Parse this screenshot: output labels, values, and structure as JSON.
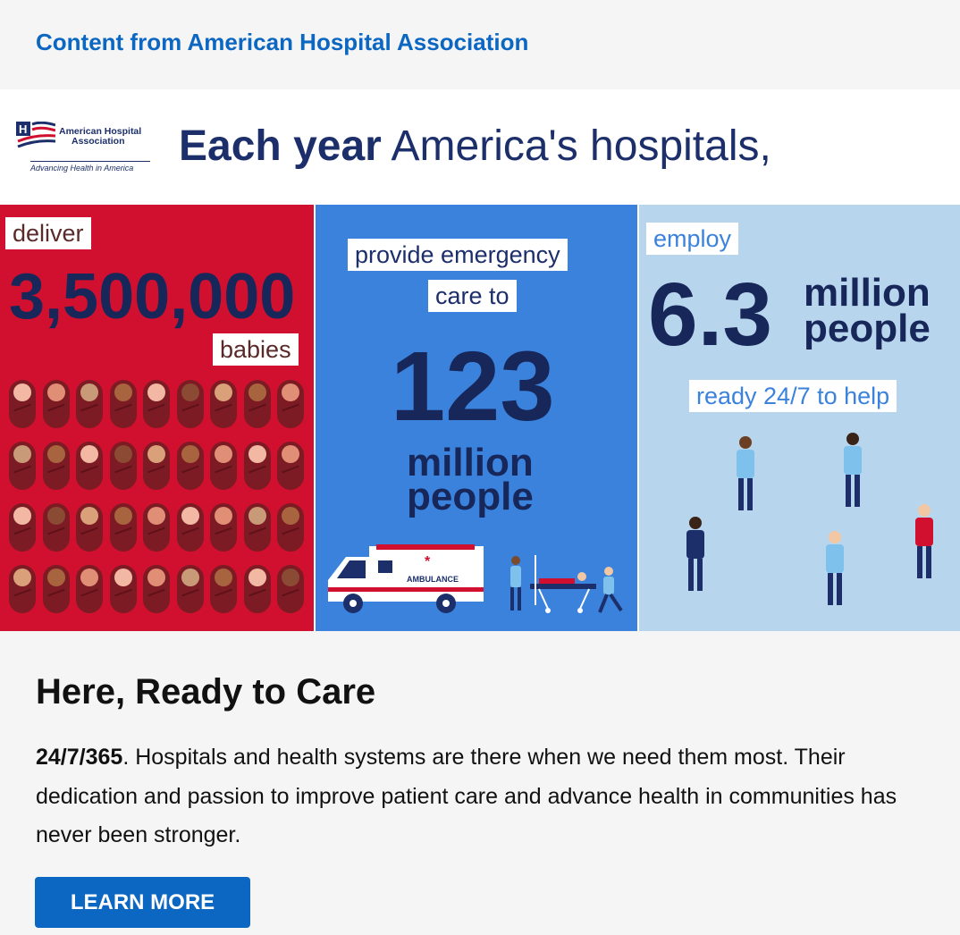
{
  "sponsor_label": "Content from American Hospital Association",
  "logo": {
    "name_line1": "American Hospital",
    "name_line2": "Association",
    "tagline": "Advancing Health in America"
  },
  "headline": {
    "bold": "Each year",
    "rest": " America's hospitals,"
  },
  "panel_babies": {
    "verb": "deliver",
    "number": "3,500,000",
    "noun": "babies"
  },
  "panel_emergency": {
    "line1": "provide emergency",
    "line2": "care to",
    "number": "123",
    "unit_line1": "million",
    "unit_line2": "people",
    "vehicle_label": "AMBULANCE"
  },
  "panel_employ": {
    "verb": "employ",
    "number": "6.3",
    "unit_line1": "million",
    "unit_line2": "people",
    "caption": "ready 24/7 to help"
  },
  "article": {
    "title": "Here, Ready to Care",
    "lead": "24/7/365",
    "body": ". Hospitals and health systems are there when we need them most. Their dedication and passion to improve patient care and advance health in communities has never been stronger."
  },
  "cta": {
    "label": "LEARN MORE"
  },
  "colors": {
    "brand_blue": "#0b67c2",
    "navy": "#1c2f6b",
    "red_panel": "#d0102e",
    "blue_panel": "#3b82dd",
    "light_panel": "#b7d5ec"
  }
}
